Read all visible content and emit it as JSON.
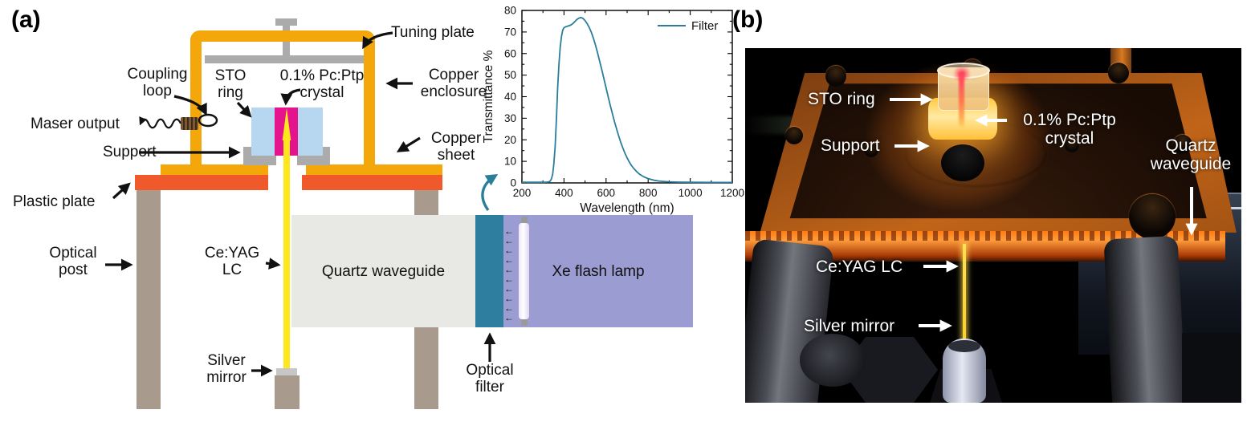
{
  "panel_a": {
    "tag": "(a)",
    "labels": {
      "coupling_loop_1": "Coupling",
      "coupling_loop_2": "loop",
      "maser_output": "Maser output",
      "sto_ring_1": "STO",
      "sto_ring_2": "ring",
      "crystal_1": "0.1% Pc:Ptp",
      "crystal_2": "crystal",
      "tuning_plate": "Tuning plate",
      "copper_enclosure_1": "Copper",
      "copper_enclosure_2": "enclosure",
      "copper_sheet_1": "Copper",
      "copper_sheet_2": "sheet",
      "support": "Support",
      "plastic_plate": "Plastic plate",
      "optical_post_1": "Optical",
      "optical_post_2": "post",
      "ceyag_1": "Ce:YAG",
      "ceyag_2": "LC",
      "quartz_waveguide": "Quartz waveguide",
      "xe_flash_lamp": "Xe flash lamp",
      "silver_mirror_1": "Silver",
      "silver_mirror_2": "mirror",
      "optical_filter_1": "Optical",
      "optical_filter_2": "filter"
    },
    "colors": {
      "copper": "#F3A70B",
      "plastic": "#F0592B",
      "sto_ring": "#B7D7F1",
      "crystal": "#E5148E",
      "fiber": "#FFE71E",
      "gray": "#ABABAB",
      "post": "#A89B8D",
      "waveguide": "#E8E8E5",
      "filter": "#2E7F9F",
      "lamp": "#9B9DD2",
      "chart_line": "#2B7D9C"
    },
    "lamp": {
      "arrow_count": 10,
      "arrow_glyph": "←"
    },
    "chart_data": {
      "type": "line",
      "title": "",
      "xlabel": "Wavelength (nm)",
      "ylabel": "Transmittance %",
      "xlim": [
        200,
        1200
      ],
      "ylim": [
        0,
        80
      ],
      "xmajor": 200,
      "xminor": 100,
      "ymajor": 10,
      "yminor": 5,
      "grid": false,
      "legend": {
        "label": "Filter",
        "position": "top-right"
      },
      "line_color": "#2B7D9C",
      "series_name": "Filter",
      "points": [
        [
          200,
          0.3
        ],
        [
          260,
          0.3
        ],
        [
          310,
          0.3
        ],
        [
          326,
          0.4
        ],
        [
          334,
          0.8
        ],
        [
          340,
          1.8
        ],
        [
          346,
          4
        ],
        [
          352,
          9
        ],
        [
          358,
          17
        ],
        [
          364,
          30
        ],
        [
          370,
          44
        ],
        [
          376,
          55
        ],
        [
          382,
          63
        ],
        [
          388,
          68
        ],
        [
          394,
          70.8
        ],
        [
          400,
          72
        ],
        [
          410,
          72.5
        ],
        [
          420,
          72.8
        ],
        [
          430,
          73.1
        ],
        [
          440,
          73.7
        ],
        [
          450,
          74.7
        ],
        [
          460,
          75.7
        ],
        [
          470,
          76.4
        ],
        [
          480,
          76.7
        ],
        [
          490,
          76.3
        ],
        [
          500,
          75.3
        ],
        [
          510,
          73.9
        ],
        [
          520,
          72.1
        ],
        [
          530,
          69.8
        ],
        [
          540,
          67
        ],
        [
          550,
          63.8
        ],
        [
          560,
          60.2
        ],
        [
          570,
          56.3
        ],
        [
          580,
          52.3
        ],
        [
          590,
          48.2
        ],
        [
          600,
          44.1
        ],
        [
          610,
          40
        ],
        [
          620,
          36
        ],
        [
          630,
          32.1
        ],
        [
          640,
          28.4
        ],
        [
          650,
          25
        ],
        [
          660,
          21.8
        ],
        [
          670,
          18.8
        ],
        [
          680,
          16.1
        ],
        [
          690,
          13.7
        ],
        [
          700,
          11.6
        ],
        [
          710,
          9.8
        ],
        [
          720,
          8.2
        ],
        [
          730,
          6.9
        ],
        [
          740,
          5.8
        ],
        [
          750,
          4.8
        ],
        [
          760,
          4
        ],
        [
          770,
          3.4
        ],
        [
          780,
          2.8
        ],
        [
          790,
          2.4
        ],
        [
          800,
          2
        ],
        [
          815,
          1.6
        ],
        [
          830,
          1.2
        ],
        [
          850,
          0.9
        ],
        [
          870,
          0.7
        ],
        [
          900,
          0.5
        ],
        [
          940,
          0.38
        ],
        [
          1000,
          0.3
        ],
        [
          1060,
          0.26
        ],
        [
          1120,
          0.24
        ],
        [
          1200,
          0.22
        ]
      ]
    }
  },
  "panel_b": {
    "tag": "(b)",
    "labels": {
      "sto_ring": "STO ring",
      "crystal_1": "0.1% Pc:Ptp",
      "crystal_2": "crystal",
      "support": "Support",
      "quartz_1": "Quartz",
      "quartz_2": "waveguide",
      "ceyag": "Ce:YAG LC",
      "silver_mirror": "Silver mirror"
    }
  }
}
